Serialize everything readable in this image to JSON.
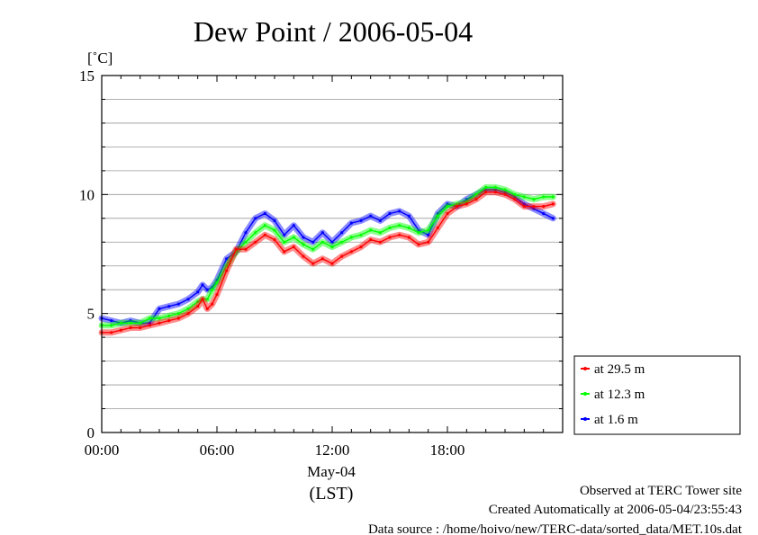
{
  "chart_data": {
    "type": "line",
    "title": "Dew Point / 2006-05-04",
    "ylabel": "[˚C]",
    "xlabel": "(LST)",
    "date_label": "May-04",
    "ylim": [
      0,
      15
    ],
    "xlim_hours": [
      0,
      24
    ],
    "grid": "horizontal",
    "legend_placement": "right",
    "y_ticks": [
      "0",
      "5",
      "10",
      "15"
    ],
    "x_ticks": [
      {
        "hour": 0,
        "label": "00:00"
      },
      {
        "hour": 6,
        "label": "06:00"
      },
      {
        "hour": 12,
        "label": "12:00"
      },
      {
        "hour": 18,
        "label": "18:00"
      }
    ],
    "x": [
      0,
      0.5,
      1,
      1.5,
      2,
      2.5,
      3,
      3.5,
      4,
      4.5,
      5,
      5.25,
      5.5,
      5.75,
      6,
      6.5,
      7,
      7.5,
      8,
      8.5,
      9,
      9.5,
      10,
      10.5,
      11,
      11.5,
      12,
      12.5,
      13,
      13.5,
      14,
      14.5,
      15,
      15.5,
      16,
      16.5,
      17,
      17.5,
      18,
      18.5,
      19,
      19.5,
      20,
      20.5,
      21,
      21.5,
      22,
      22.5,
      23,
      23.5
    ],
    "series": [
      {
        "name": "at 29.5 m",
        "color": "#ff0000",
        "values": [
          4.2,
          4.2,
          4.3,
          4.4,
          4.4,
          4.5,
          4.6,
          4.7,
          4.8,
          5.0,
          5.3,
          5.6,
          5.2,
          5.4,
          5.8,
          6.8,
          7.7,
          7.7,
          8.0,
          8.3,
          8.1,
          7.6,
          7.8,
          7.4,
          7.1,
          7.3,
          7.1,
          7.4,
          7.6,
          7.8,
          8.1,
          8.0,
          8.2,
          8.3,
          8.2,
          7.9,
          8.0,
          8.6,
          9.2,
          9.5,
          9.6,
          9.8,
          10.1,
          10.1,
          10.0,
          9.8,
          9.5,
          9.5,
          9.5,
          9.6
        ]
      },
      {
        "name": "at 12.3 m",
        "color": "#00ff00",
        "values": [
          4.5,
          4.5,
          4.6,
          4.6,
          4.6,
          4.8,
          4.8,
          4.9,
          5.0,
          5.2,
          5.5,
          5.6,
          5.6,
          6.0,
          6.3,
          7.0,
          7.6,
          8.0,
          8.4,
          8.7,
          8.5,
          8.0,
          8.2,
          7.9,
          7.7,
          8.0,
          7.8,
          8.0,
          8.2,
          8.3,
          8.5,
          8.4,
          8.6,
          8.7,
          8.6,
          8.4,
          8.5,
          9.1,
          9.5,
          9.6,
          9.7,
          10.0,
          10.3,
          10.3,
          10.2,
          10.0,
          9.9,
          9.8,
          9.9,
          9.9
        ]
      },
      {
        "name": "at 1.6 m",
        "color": "#0000ff",
        "values": [
          4.8,
          4.7,
          4.6,
          4.7,
          4.6,
          4.6,
          5.2,
          5.3,
          5.4,
          5.6,
          5.9,
          6.2,
          6.0,
          6.1,
          6.4,
          7.3,
          7.6,
          8.4,
          9.0,
          9.2,
          8.9,
          8.3,
          8.7,
          8.2,
          8.0,
          8.4,
          8.0,
          8.4,
          8.8,
          8.9,
          9.1,
          8.9,
          9.2,
          9.3,
          9.1,
          8.5,
          8.3,
          9.2,
          9.6,
          9.5,
          9.8,
          10.0,
          10.2,
          10.2,
          10.1,
          9.9,
          9.6,
          9.4,
          9.2,
          9.0
        ]
      }
    ]
  },
  "footer": {
    "line1": "Observed at TERC Tower site",
    "line2": "Created Automatically at 2006-05-04/23:55:43",
    "line3": "Data source : /home/hoivo/new/TERC-data/sorted_data/MET.10s.dat"
  }
}
